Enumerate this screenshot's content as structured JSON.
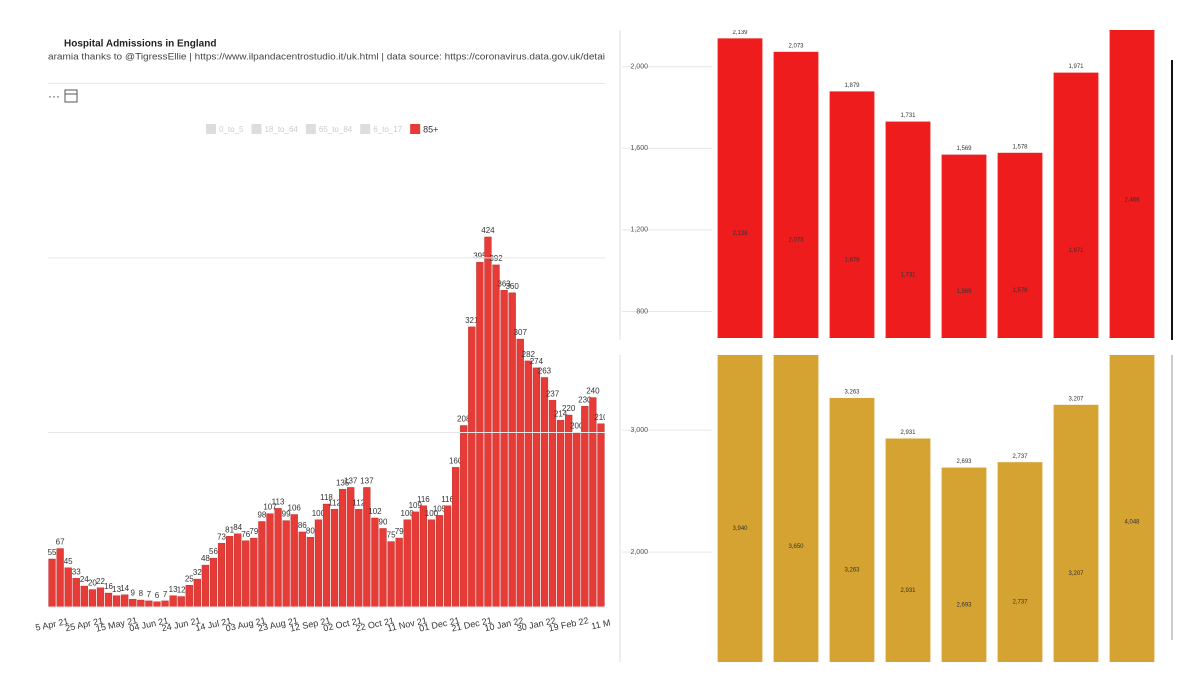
{
  "chart_data": [
    {
      "type": "bar",
      "title": "Hospital Admissions in England",
      "subtitle": "aramia thanks to @TigressEllie | https://www.ilpandacentrostudio.it/uk.html | data source: https://coronavirus.data.gov.uk/detai",
      "legend_inactive": [
        "0_to_5",
        "18_to_64",
        "65_to_84",
        "6_to_17"
      ],
      "categories": [
        "5 Apr 21",
        null,
        null,
        null,
        "25 Apr 21",
        null,
        null,
        null,
        "15 May 21",
        null,
        null,
        null,
        "04 Jun 21",
        null,
        null,
        null,
        "24 Jun 21",
        null,
        null,
        null,
        "14 Jul 21",
        null,
        null,
        null,
        "03 Aug 21",
        null,
        null,
        null,
        "23 Aug 21",
        null,
        null,
        null,
        "12 Sep 21",
        null,
        null,
        null,
        "02 Oct 21",
        null,
        null,
        null,
        "22 Oct 21",
        null,
        null,
        null,
        "11 Nov 21",
        null,
        null,
        null,
        "01 Dec 21",
        null,
        null,
        null,
        "21 Dec 21",
        null,
        null,
        null,
        "10 Jan 22",
        null,
        null,
        null,
        "30 Jan 22",
        null,
        null,
        null,
        "19 Feb 22",
        null,
        null,
        null,
        "11 M"
      ],
      "series": [
        {
          "name": "85+",
          "color": "#e63b36",
          "values": [
            55,
            67,
            45,
            33,
            24,
            20,
            22,
            16,
            13,
            14,
            9,
            8,
            7,
            6,
            7,
            13,
            12,
            25,
            32,
            48,
            56,
            73,
            81,
            84,
            76,
            79,
            98,
            107,
            113,
            99,
            106,
            86,
            80,
            100,
            118,
            112,
            135,
            137,
            112,
            137,
            102,
            90,
            75,
            79,
            100,
            109,
            116,
            100,
            105,
            116,
            160,
            208,
            321,
            395,
            424,
            392,
            363,
            360,
            307,
            282,
            274,
            263,
            237,
            214,
            220,
            200,
            230,
            240,
            210
          ]
        }
      ],
      "ylim": [
        0,
        660
      ],
      "yticks": [
        0,
        200,
        400,
        600
      ],
      "grid": true
    },
    {
      "type": "bar",
      "color": "#ee1c1c",
      "values": [
        2139,
        2073,
        1879,
        1731,
        1569,
        1578,
        1971,
        2466
      ],
      "value_labels": [
        "2,139",
        "2,073",
        "1,879",
        "1,731",
        "1,569",
        "1,578",
        "1,971",
        "2,466"
      ],
      "ylim": [
        670,
        2180
      ],
      "yticks": [
        {
          "value": 800,
          "label": "800"
        },
        {
          "value": 1200,
          "label": "1,200"
        },
        {
          "value": 1600,
          "label": "1,600"
        },
        {
          "value": 2000,
          "label": "2,000"
        }
      ],
      "grid": true
    },
    {
      "type": "bar",
      "color": "#d4a332",
      "values": [
        3940,
        3650,
        3263,
        2931,
        2693,
        2737,
        3207,
        4048
      ],
      "value_labels": [
        "3,940",
        "3,650",
        "3,263",
        "2,931",
        "2,693",
        "2,737",
        "3,207",
        "4,048"
      ],
      "ylim": [
        1100,
        3615
      ],
      "yticks": [
        {
          "value": 2000,
          "label": "2,000"
        },
        {
          "value": 3000,
          "label": "3,000"
        }
      ],
      "grid": true
    }
  ]
}
